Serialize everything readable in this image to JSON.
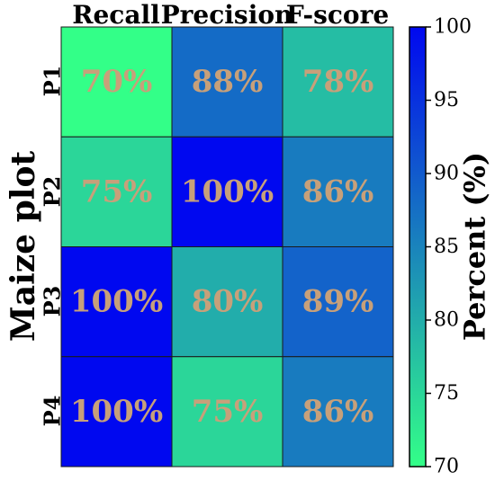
{
  "chart_data": {
    "type": "heatmap",
    "columns": [
      "Recall",
      "Precision",
      "F-score"
    ],
    "rows": [
      "P1",
      "P2",
      "P3",
      "P4"
    ],
    "values": [
      [
        70,
        88,
        78
      ],
      [
        75,
        100,
        86
      ],
      [
        100,
        80,
        89
      ],
      [
        100,
        75,
        86
      ]
    ],
    "cell_labels": [
      [
        "70%",
        "88%",
        "78%"
      ],
      [
        "75%",
        "100%",
        "86%"
      ],
      [
        "100%",
        "80%",
        "89%"
      ],
      [
        "100%",
        "75%",
        "86%"
      ]
    ],
    "ylabel": "Maize plot",
    "colorbar_label": "Percent (%)",
    "colorbar_range": [
      70,
      100
    ],
    "colorbar_ticks": [
      "70",
      "75",
      "80",
      "85",
      "90",
      "95",
      "100"
    ],
    "colormap_low": "#33ff88",
    "colormap_high": "#0008f0",
    "label_color": "#c7a07a",
    "legend_placement": "right"
  }
}
